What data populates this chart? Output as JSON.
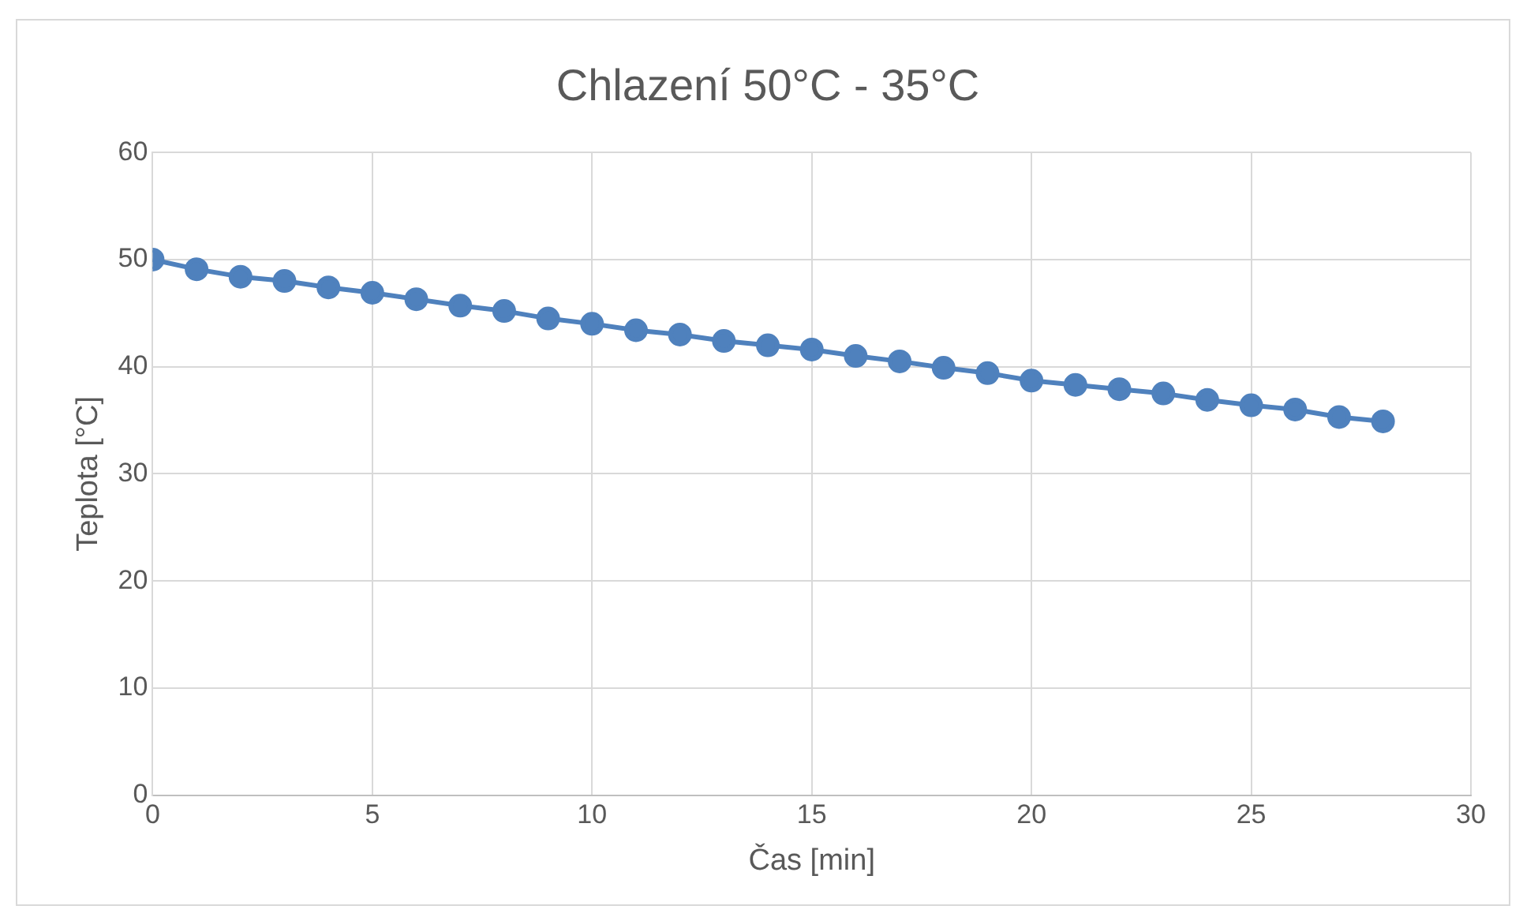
{
  "chart_data": {
    "type": "line",
    "title": "Chlazení 50°C - 35°C",
    "xlabel": "Čas [min]",
    "ylabel": "Teplota [°C]",
    "x": [
      0,
      1,
      2,
      3,
      4,
      5,
      6,
      7,
      8,
      9,
      10,
      11,
      12,
      13,
      14,
      15,
      16,
      17,
      18,
      19,
      20,
      21,
      22,
      23,
      24,
      25,
      26,
      27,
      28
    ],
    "series": [
      {
        "color": "#4f81bd",
        "values": [
          50.0,
          49.1,
          48.4,
          48.0,
          47.4,
          46.9,
          46.3,
          45.7,
          45.2,
          44.5,
          44.0,
          43.4,
          43.0,
          42.4,
          42.0,
          41.6,
          41.0,
          40.5,
          39.9,
          39.4,
          38.7,
          38.3,
          37.9,
          37.5,
          36.9,
          36.4,
          36.0,
          35.3,
          34.9
        ]
      }
    ],
    "xlim": [
      0,
      30
    ],
    "xticks": [
      0,
      5,
      10,
      15,
      20,
      25,
      30
    ],
    "ylim": [
      0,
      60
    ],
    "yticks": [
      0,
      10,
      20,
      30,
      40,
      50,
      60
    ],
    "grid": true,
    "legend": false,
    "marker": "circle",
    "line_style": "solid"
  }
}
